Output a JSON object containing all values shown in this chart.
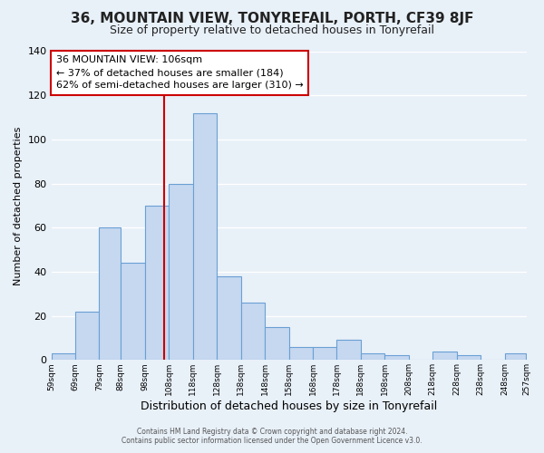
{
  "title": "36, MOUNTAIN VIEW, TONYREFAIL, PORTH, CF39 8JF",
  "subtitle": "Size of property relative to detached houses in Tonyrefail",
  "xlabel": "Distribution of detached houses by size in Tonyrefail",
  "ylabel": "Number of detached properties",
  "bin_edges": [
    59,
    69,
    79,
    88,
    98,
    108,
    118,
    128,
    138,
    148,
    158,
    168,
    178,
    188,
    198,
    208,
    218,
    228,
    238,
    248,
    257
  ],
  "bar_heights": [
    3,
    22,
    60,
    44,
    70,
    80,
    112,
    38,
    26,
    15,
    6,
    6,
    9,
    3,
    2,
    0,
    4,
    2,
    0,
    3
  ],
  "bar_color": "#c5d8f0",
  "bar_edge_color": "#6aa0d4",
  "vline_x": 106,
  "vline_color": "#cc0000",
  "annotation_line1": "36 MOUNTAIN VIEW: 106sqm",
  "annotation_line2": "← 37% of detached houses are smaller (184)",
  "annotation_line3": "62% of semi-detached houses are larger (310) →",
  "annotation_box_color": "#ffffff",
  "annotation_box_edge": "#cc0000",
  "annotation_fontsize": 8.0,
  "ylim": [
    0,
    140
  ],
  "yticks": [
    0,
    20,
    40,
    60,
    80,
    100,
    120,
    140
  ],
  "tick_labels": [
    "59sqm",
    "69sqm",
    "79sqm",
    "88sqm",
    "98sqm",
    "108sqm",
    "118sqm",
    "128sqm",
    "138sqm",
    "148sqm",
    "158sqm",
    "168sqm",
    "178sqm",
    "188sqm",
    "198sqm",
    "208sqm",
    "218sqm",
    "228sqm",
    "238sqm",
    "248sqm",
    "257sqm"
  ],
  "background_color": "#e8f0f8",
  "grid_color": "#ffffff",
  "footer_line1": "Contains HM Land Registry data © Crown copyright and database right 2024.",
  "footer_line2": "Contains public sector information licensed under the Open Government Licence v3.0.",
  "title_fontsize": 11,
  "subtitle_fontsize": 9,
  "ylabel_fontsize": 8,
  "xlabel_fontsize": 9
}
